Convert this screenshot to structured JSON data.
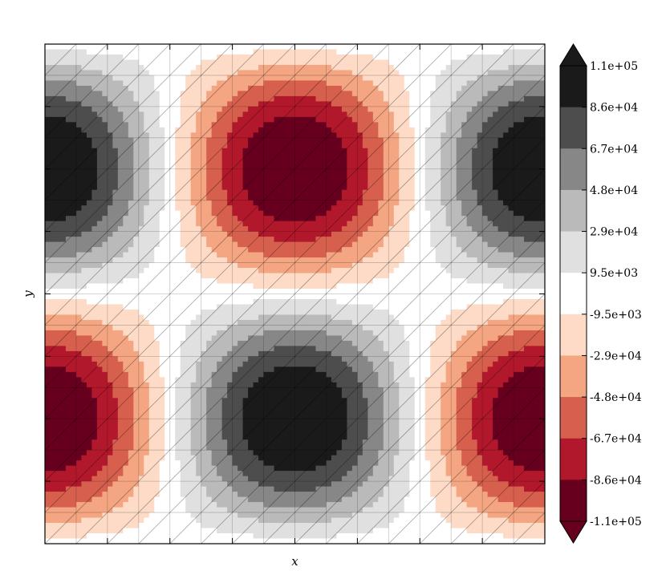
{
  "chart_data": {
    "type": "heatmap",
    "subtype": "filled-contour",
    "title": "",
    "xlabel": "x",
    "ylabel": "y",
    "x_tick_labels": [],
    "y_tick_labels": [],
    "grid": true,
    "triangular_mesh_overlay": true,
    "field_peaks": [
      {
        "x": 0.0,
        "y": 0.75,
        "value": 110000
      },
      {
        "x": 0.5,
        "y": 0.75,
        "value": -110000
      },
      {
        "x": 1.0,
        "y": 0.75,
        "value": 110000
      },
      {
        "x": 0.0,
        "y": 0.25,
        "value": -110000
      },
      {
        "x": 0.5,
        "y": 0.25,
        "value": 110000
      },
      {
        "x": 1.0,
        "y": 0.25,
        "value": -110000
      }
    ],
    "colorbar": {
      "extend": "both",
      "levels": [
        {
          "label": "1.1e+05",
          "value": 110000
        },
        {
          "label": "8.6e+04",
          "value": 86000
        },
        {
          "label": "6.7e+04",
          "value": 67000
        },
        {
          "label": "4.8e+04",
          "value": 48000
        },
        {
          "label": "2.9e+04",
          "value": 29000
        },
        {
          "label": "9.5e+03",
          "value": 9500
        },
        {
          "label": "-9.5e+03",
          "value": -9500
        },
        {
          "label": "-2.9e+04",
          "value": -29000
        },
        {
          "label": "-4.8e+04",
          "value": -48000
        },
        {
          "label": "-6.7e+04",
          "value": -67000
        },
        {
          "label": "-8.6e+04",
          "value": -86000
        },
        {
          "label": "-1.1e+05",
          "value": -110000
        }
      ],
      "band_colors": [
        "#1a1a1a",
        "#4d4d4d",
        "#878787",
        "#bababa",
        "#e0e0e0",
        "#ffffff",
        "#fddbc7",
        "#f4a582",
        "#d6604d",
        "#b2182b",
        "#67001f"
      ],
      "over_color": "#1a1a1a",
      "under_color": "#67001f"
    }
  }
}
